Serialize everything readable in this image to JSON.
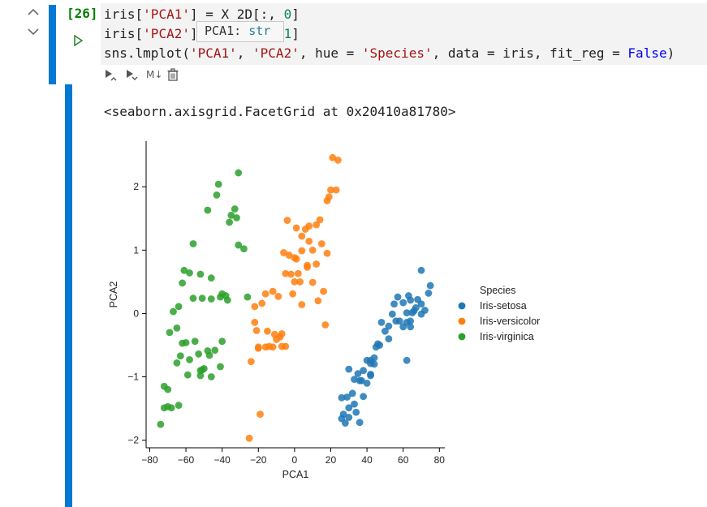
{
  "cell": {
    "execution_count": "[26]",
    "code_lines": [
      [
        {
          "t": "iris["
        },
        {
          "t": "'PCA1'",
          "c": "str"
        },
        {
          "t": "] = X_2D[:, "
        },
        {
          "t": "0",
          "c": "num"
        },
        {
          "t": "]"
        }
      ],
      [
        {
          "t": "iris["
        },
        {
          "t": "'PCA2'",
          "c": "str"
        },
        {
          "t": "] = X_2D[:, "
        },
        {
          "t": "1",
          "c": "num"
        },
        {
          "t": "]"
        }
      ],
      [
        {
          "t": "sns.lmplot("
        },
        {
          "t": "'PCA1'",
          "c": "str"
        },
        {
          "t": ", "
        },
        {
          "t": "'PCA2'",
          "c": "str"
        },
        {
          "t": ", hue = "
        },
        {
          "t": "'Species'",
          "c": "str"
        },
        {
          "t": ", data = iris, fit_reg = "
        },
        {
          "t": "False",
          "c": "kw"
        },
        {
          "t": ")"
        }
      ]
    ],
    "tooltip": {
      "name": "PCA1: ",
      "type": "str"
    },
    "toolbar_icons": [
      "collapse-up-icon",
      "collapse-down-icon",
      "run-cell-icon"
    ],
    "action_icons": [
      "run-above-icon",
      "run-below-icon",
      "markdown-icon",
      "delete-icon"
    ],
    "markdown_label": "M↓"
  },
  "output": {
    "repr": "<seaborn.axisgrid.FacetGrid at 0x20410a81780>"
  },
  "chart_data": {
    "type": "scatter",
    "xlabel": "PCA1",
    "ylabel": "PCA2",
    "xlim": [
      -82,
      83
    ],
    "ylim": [
      -2.12,
      2.72
    ],
    "xticks": [
      -80,
      -60,
      -40,
      -20,
      0,
      20,
      40,
      60,
      80
    ],
    "xtick_labels": [
      "−80",
      "−60",
      "−40",
      "−20",
      "0",
      "20",
      "40",
      "60",
      "80"
    ],
    "yticks": [
      -2,
      -1,
      0,
      1,
      2
    ],
    "ytick_labels": [
      "−2",
      "−1",
      "0",
      "1",
      "2"
    ],
    "legend_title": "Species",
    "legend_placement": "right",
    "series": [
      {
        "name": "Iris-setosa",
        "color": "#1f77b4",
        "x": [
          70,
          75,
          74,
          63,
          64,
          57,
          55,
          60,
          68,
          70,
          72,
          66,
          62,
          65,
          70,
          67,
          54,
          58,
          62,
          56,
          60,
          64,
          64,
          48,
          52,
          50,
          46,
          52,
          47,
          45,
          44,
          42,
          40,
          38,
          44,
          42,
          35,
          37,
          30,
          33,
          36,
          40,
          32,
          38,
          29,
          33,
          26,
          27,
          30,
          34,
          30,
          28,
          36,
          26,
          42,
          42,
          62
        ],
        "y": [
          0.68,
          0.44,
          0.32,
          0.28,
          0.21,
          0.26,
          0.15,
          0.17,
          0.22,
          0.15,
          0.05,
          0.04,
          0.01,
          0.01,
          -0.01,
          0.09,
          -0.01,
          -0.12,
          -0.14,
          -0.12,
          -0.21,
          -0.12,
          -0.21,
          -0.14,
          -0.2,
          -0.28,
          -0.48,
          -0.4,
          -0.5,
          -0.53,
          -0.7,
          -0.74,
          -0.74,
          -0.9,
          -0.8,
          -0.98,
          -0.95,
          -1.06,
          -0.88,
          -1.04,
          -1.06,
          -1.1,
          -1.26,
          -1.31,
          -1.32,
          -1.43,
          -1.33,
          -1.59,
          -1.49,
          -1.56,
          -1.64,
          -1.73,
          -1.72,
          -1.66,
          -0.96,
          -0.79,
          -0.74
        ]
      },
      {
        "name": "Iris-versicolor",
        "color": "#ff7f0e",
        "x": [
          21,
          24,
          23,
          19,
          20,
          18,
          14,
          12,
          8,
          6,
          1,
          15,
          10,
          4,
          0,
          -3,
          -6,
          7,
          2,
          -2,
          3,
          -1,
          -9,
          -12,
          -16,
          -18,
          -22,
          -22,
          -21,
          -20,
          -15,
          -11,
          -7,
          -7,
          -5,
          -8,
          -10,
          -12,
          -14,
          -16,
          12,
          8,
          4,
          -4,
          1,
          -5,
          13,
          17,
          18,
          4,
          16,
          0,
          7,
          10,
          -20,
          -24,
          -19,
          -25
        ],
        "y": [
          2.46,
          2.42,
          1.95,
          1.84,
          1.95,
          1.78,
          1.48,
          1.4,
          1.38,
          1.33,
          1.35,
          1.1,
          1.0,
          0.99,
          0.88,
          0.92,
          0.96,
          0.73,
          0.63,
          0.62,
          0.5,
          0.31,
          0.27,
          0.35,
          0.31,
          0.16,
          0.11,
          -0.14,
          -0.27,
          -0.55,
          -0.28,
          -0.33,
          -0.32,
          -0.52,
          -0.52,
          -0.37,
          -0.41,
          -0.53,
          -0.52,
          -0.53,
          0.78,
          1.14,
          1.22,
          1.47,
          0.86,
          0.63,
          0.2,
          -0.18,
          0.95,
          0.14,
          0.35,
          0.5,
          0.76,
          0.49,
          -0.53,
          -0.76,
          -1.59,
          -1.97
        ]
      },
      {
        "name": "Iris-virginica",
        "color": "#2ca02c",
        "x": [
          -31,
          -42,
          -43,
          -33,
          -35,
          -48,
          -36,
          -32,
          -28,
          -31,
          -56,
          -61,
          -58,
          -52,
          -46,
          -40,
          -26,
          -41,
          -37,
          -46,
          -51,
          -38,
          -62,
          -56,
          -64,
          -67,
          -65,
          -69,
          -62,
          -55,
          -48,
          -40,
          -44,
          -60,
          -63,
          -65,
          -58,
          -53,
          -47,
          -51,
          -52,
          -46,
          -72,
          -70,
          -70,
          -74,
          -72,
          -64,
          -68,
          -41,
          -52,
          -50,
          -59
        ],
        "y": [
          2.22,
          2.04,
          1.87,
          1.65,
          1.55,
          1.63,
          1.44,
          1.51,
          1.02,
          1.08,
          1.1,
          0.68,
          0.64,
          0.62,
          0.56,
          0.31,
          0.26,
          0.26,
          0.21,
          0.23,
          0.24,
          0.28,
          0.48,
          0.24,
          0.11,
          0.03,
          -0.23,
          -0.3,
          -0.47,
          -0.44,
          -0.59,
          -0.44,
          -0.58,
          -0.46,
          -0.67,
          -0.78,
          -0.73,
          -0.64,
          -0.66,
          -0.89,
          -0.9,
          -1.0,
          -1.15,
          -1.2,
          -1.47,
          -1.75,
          -1.49,
          -1.45,
          -1.49,
          -0.84,
          -0.98,
          -0.87,
          -0.97
        ]
      }
    ]
  }
}
